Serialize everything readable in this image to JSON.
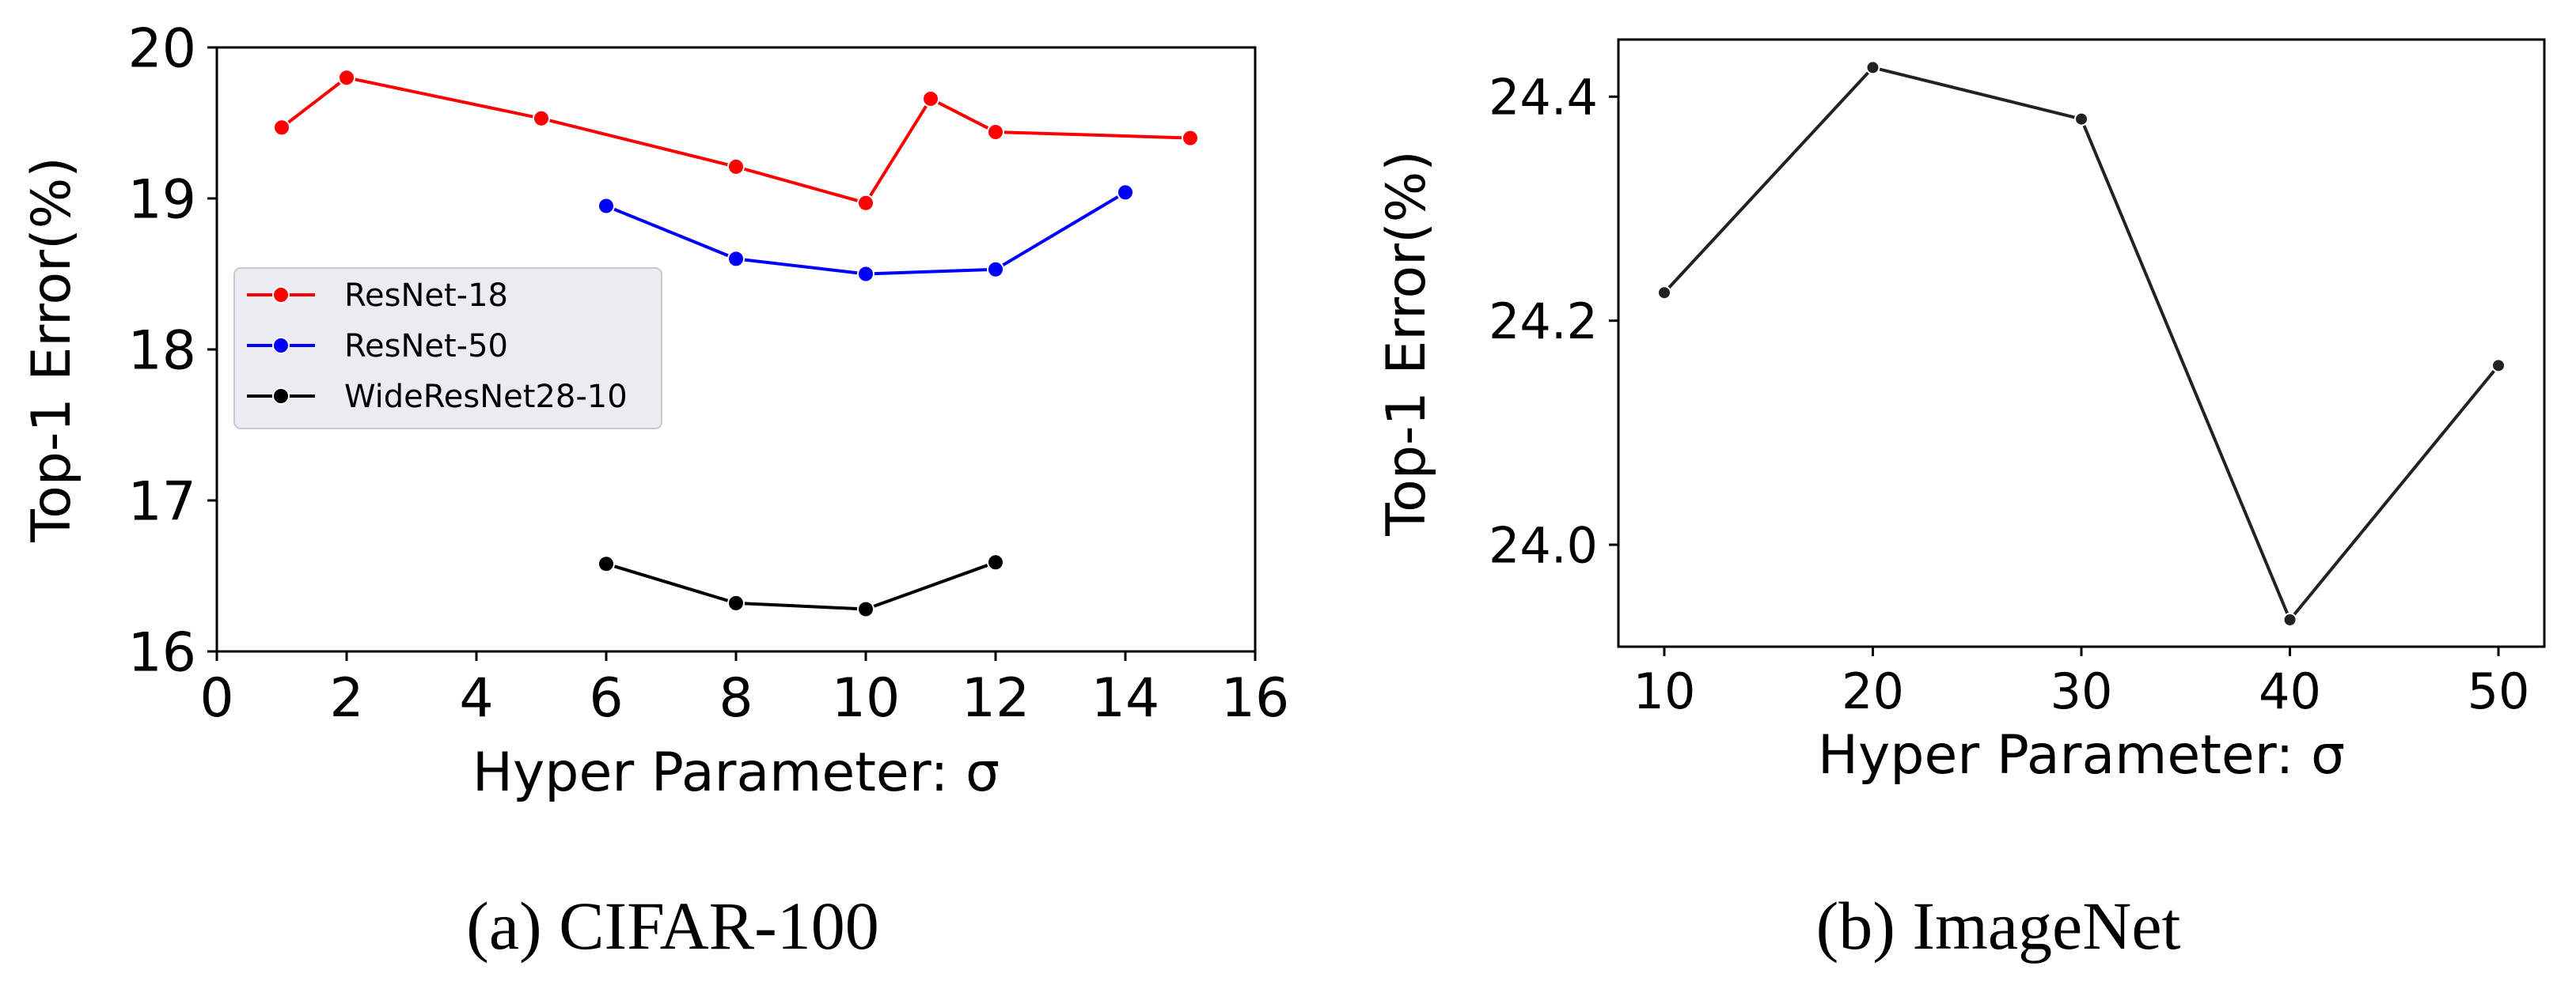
{
  "chart_data": [
    {
      "type": "line",
      "caption": "(a) CIFAR-100",
      "xlabel": "Hyper Parameter: σ",
      "ylabel": "Top-1 Error(%)",
      "xlim": [
        0,
        16
      ],
      "ylim": [
        16,
        20
      ],
      "xticks": [
        "0",
        "2",
        "4",
        "6",
        "8",
        "10",
        "12",
        "14",
        "16"
      ],
      "yticks": [
        "16",
        "17",
        "18",
        "19",
        "20"
      ],
      "grid": false,
      "legend_position": "center-left",
      "series": [
        {
          "name": "ResNet-18",
          "color": "#ff0000",
          "x": [
            1,
            2,
            5,
            8,
            10,
            11,
            12,
            15
          ],
          "y": [
            19.47,
            19.8,
            19.53,
            19.21,
            18.97,
            19.66,
            19.44,
            19.4
          ]
        },
        {
          "name": "ResNet-50",
          "color": "#0000ff",
          "x": [
            6,
            8,
            10,
            12,
            14
          ],
          "y": [
            18.95,
            18.6,
            18.5,
            18.53,
            19.04
          ]
        },
        {
          "name": "WideResNet28-10",
          "color": "#000000",
          "x": [
            6,
            8,
            10,
            12
          ],
          "y": [
            16.58,
            16.32,
            16.28,
            16.59
          ]
        }
      ]
    },
    {
      "type": "line",
      "caption": "(b) ImageNet",
      "xlabel": "Hyper Parameter: σ",
      "ylabel": "Top-1 Error(%)",
      "xlim": [
        7.8,
        52.2
      ],
      "ylim": [
        23.909,
        24.451
      ],
      "xticks": [
        "10",
        "20",
        "30",
        "40",
        "50"
      ],
      "yticks": [
        "24.0",
        "24.2",
        "24.4"
      ],
      "grid": false,
      "series": [
        {
          "name": "ImageNet",
          "color": "#222222",
          "x": [
            10,
            20,
            30,
            40,
            50
          ],
          "y": [
            24.225,
            24.426,
            24.38,
            23.933,
            24.16
          ]
        }
      ]
    }
  ]
}
